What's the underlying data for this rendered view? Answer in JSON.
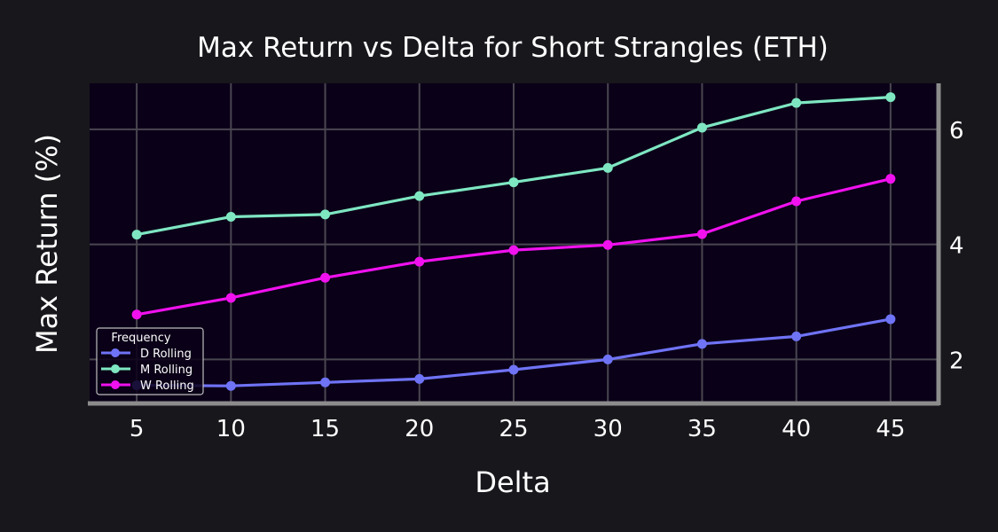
{
  "chart_data": {
    "type": "line",
    "title": "Max Return vs Delta for Short Strangles (ETH)",
    "xlabel": "Delta",
    "ylabel": "Max Return (%)",
    "x": [
      5,
      10,
      15,
      20,
      25,
      30,
      35,
      40,
      45
    ],
    "xlim": [
      2.5,
      47.5
    ],
    "ylim": [
      1.25,
      6.8
    ],
    "xticks": [
      5,
      10,
      15,
      20,
      25,
      30,
      35,
      40,
      45
    ],
    "yticks": [
      2,
      4,
      6
    ],
    "y_axis_side": "right",
    "grid": true,
    "legend": {
      "title": "Frequency",
      "position": "lower-left"
    },
    "series": [
      {
        "name": "D Rolling",
        "color": "#6f73f5",
        "values": [
          1.55,
          1.54,
          1.6,
          1.66,
          1.82,
          2.0,
          2.27,
          2.4,
          2.7
        ]
      },
      {
        "name": "M Rolling",
        "color": "#7ee7c2",
        "values": [
          4.17,
          4.48,
          4.52,
          4.84,
          5.08,
          5.33,
          6.03,
          6.46,
          6.56
        ]
      },
      {
        "name": "W Rolling",
        "color": "#f011ee",
        "values": [
          2.78,
          3.07,
          3.42,
          3.7,
          3.9,
          3.99,
          4.18,
          4.75,
          5.14
        ]
      }
    ]
  }
}
